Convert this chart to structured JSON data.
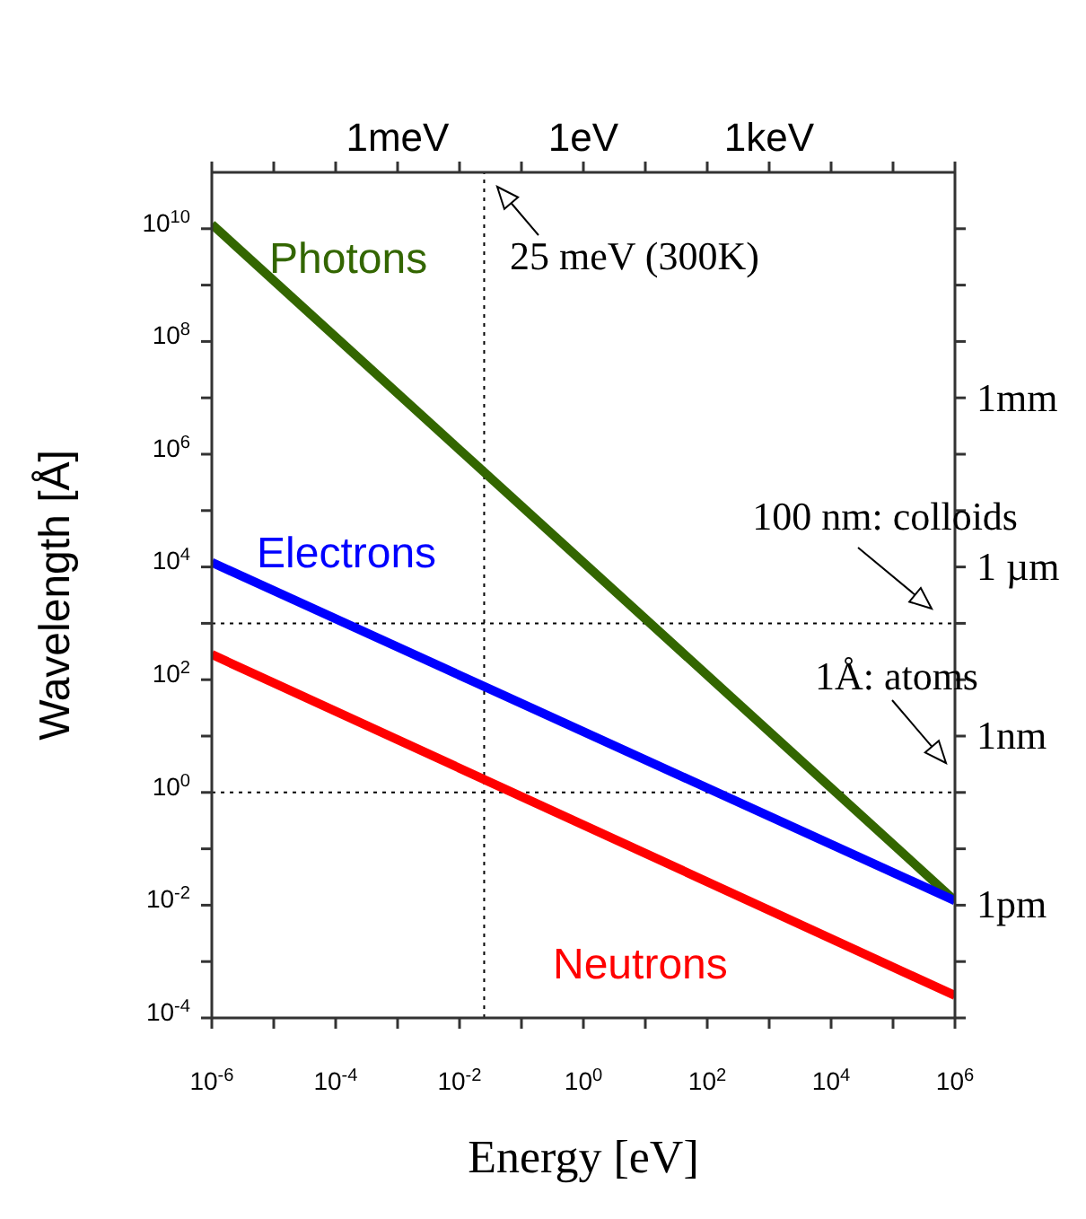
{
  "chart_data": {
    "type": "line",
    "xlabel": "Energy [eV]",
    "ylabel": "Wavelength [Å]",
    "log": "xy",
    "x": [
      1e-06,
      1000000.0
    ],
    "series": [
      {
        "name": "Photons",
        "color": "#336600",
        "values": [
          12000000000.0,
          0.012
        ]
      },
      {
        "name": "Electrons",
        "color": "#0000ff",
        "values": [
          12000.0,
          0.012
        ]
      },
      {
        "name": "Neutrons",
        "color": "#ff0000",
        "values": [
          280,
          0.00025
        ]
      }
    ],
    "xlim": [
      1e-06,
      1000000.0
    ],
    "xticks": [
      {
        "value": 1e-06,
        "label": "10$^{-6}$"
      },
      {
        "value": 1e-05,
        "label": null
      },
      {
        "value": 0.0001,
        "label": "10$^{-4}$"
      },
      {
        "value": 0.001,
        "label": null
      },
      {
        "value": 0.01,
        "label": "10$^{-2}$"
      },
      {
        "value": 0.1,
        "label": null
      },
      {
        "value": 1,
        "label": "10$^{0}$"
      },
      {
        "value": 10,
        "label": null
      },
      {
        "value": 100,
        "label": "10$^{2}$"
      },
      {
        "value": 1000,
        "label": null
      },
      {
        "value": 10000.0,
        "label": "10$^{4}$"
      },
      {
        "value": 100000.0,
        "label": null
      },
      {
        "value": 1000000.0,
        "label": "10$^{6}$"
      }
    ],
    "ylim": [
      0.0001,
      100000000000.0
    ],
    "yticks": [
      {
        "value": 0.0001,
        "label": "10$^{-4}$"
      },
      {
        "value": 0.001,
        "label": null
      },
      {
        "value": 0.01,
        "label": "10$^{-2}$"
      },
      {
        "value": 0.1,
        "label": null
      },
      {
        "value": 1,
        "label": "10$^{0}$"
      },
      {
        "value": 10,
        "label": null
      },
      {
        "value": 100,
        "label": "10$^{2}$"
      },
      {
        "value": 1000,
        "label": null
      },
      {
        "value": 10000.0,
        "label": "10$^{4}$"
      },
      {
        "value": 100000.0,
        "label": null
      },
      {
        "value": 1000000.0,
        "label": "10$^{6}$"
      },
      {
        "value": 10000000.0,
        "label": null
      },
      {
        "value": 100000000.0,
        "label": "10$^{8}$"
      },
      {
        "value": 1000000000.0,
        "label": null
      },
      {
        "value": 10000000000.0,
        "label": "10$^{10}$"
      }
    ],
    "annotations": [
      "1meV",
      "1eV",
      "1keV",
      "1mm",
      "1 µm",
      "1nm",
      "1pm"
    ],
    "ref_lines": [
      {
        "axis": "x",
        "value": 0.025,
        "label": "25 meV (300K)",
        "line_style": "dotted",
        "color": "#000000"
      },
      {
        "axis": "y",
        "value": 1000,
        "label": "100 nm: colloids",
        "line_style": "dotted",
        "color": "#000000"
      },
      {
        "axis": "y",
        "value": 1,
        "label": "1Å: atoms",
        "line_style": "dotted",
        "color": "#000000"
      }
    ]
  }
}
